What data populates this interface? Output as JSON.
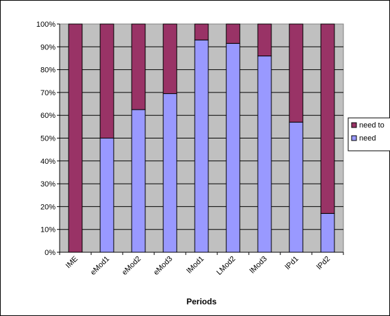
{
  "chart_data": {
    "type": "bar",
    "stacked": true,
    "percent_stacked": true,
    "categories": [
      "IME",
      "eMod1",
      "eMod2",
      "eMod3",
      "lMod1",
      "LMod2",
      "lMod3",
      "lPd1",
      "lPd2"
    ],
    "series": [
      {
        "name": "need",
        "color": "#9999ff",
        "values": [
          0,
          50,
          62.5,
          69.5,
          93,
          91.5,
          86,
          57,
          17
        ]
      },
      {
        "name": "need to",
        "color": "#993366",
        "values": [
          100,
          50,
          37.5,
          30.5,
          7,
          8.5,
          14,
          43,
          83
        ]
      }
    ],
    "xlabel": "Periods",
    "ylabel": "",
    "ylim": [
      0,
      100
    ],
    "yticks": [
      "0%",
      "10%",
      "20%",
      "30%",
      "40%",
      "50%",
      "60%",
      "70%",
      "80%",
      "90%",
      "100%"
    ],
    "plot_background": "#c0c0c0",
    "grid": true,
    "legend": {
      "placement": "right",
      "entries": [
        "need to",
        "need"
      ]
    }
  }
}
